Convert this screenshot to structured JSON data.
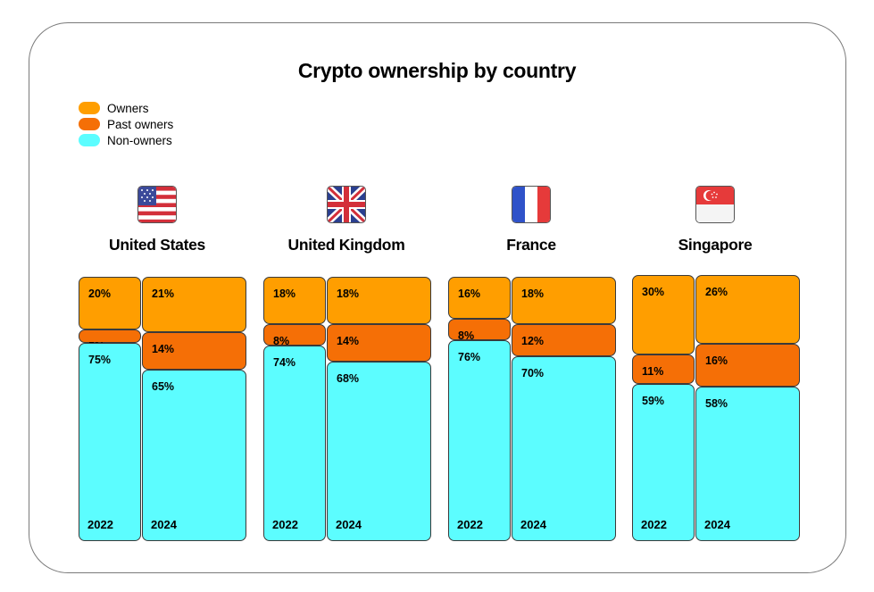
{
  "chart_data": {
    "type": "table",
    "title": "Crypto ownership by country",
    "legend": [
      {
        "name": "Owners",
        "color": "#ff9e00"
      },
      {
        "name": "Past owners",
        "color": "#f56f06"
      },
      {
        "name": "Non-owners",
        "color": "#5cfdff"
      }
    ],
    "categories": [
      "Owners",
      "Past owners",
      "Non-owners"
    ],
    "countries": [
      {
        "name": "United States",
        "flag": "us-flag-icon",
        "years": [
          {
            "year": "2022",
            "values": [
              20,
              5,
              75
            ],
            "labels": [
              "20%",
              "5%",
              "75%"
            ]
          },
          {
            "year": "2024",
            "values": [
              21,
              14,
              65
            ],
            "labels": [
              "21%",
              "14%",
              "65%"
            ]
          }
        ]
      },
      {
        "name": "United Kingdom",
        "flag": "uk-flag-icon",
        "years": [
          {
            "year": "2022",
            "values": [
              18,
              8,
              74
            ],
            "labels": [
              "18%",
              "8%",
              "74%"
            ]
          },
          {
            "year": "2024",
            "values": [
              18,
              14,
              68
            ],
            "labels": [
              "18%",
              "14%",
              "68%"
            ]
          }
        ]
      },
      {
        "name": "France",
        "flag": "france-flag-icon",
        "years": [
          {
            "year": "2022",
            "values": [
              16,
              8,
              76
            ],
            "labels": [
              "16%",
              "8%",
              "76%"
            ]
          },
          {
            "year": "2024",
            "values": [
              18,
              12,
              70
            ],
            "labels": [
              "18%",
              "12%",
              "70%"
            ]
          }
        ]
      },
      {
        "name": "Singapore",
        "flag": "singapore-flag-icon",
        "years": [
          {
            "year": "2022",
            "values": [
              30,
              11,
              59
            ],
            "labels": [
              "30%",
              "11%",
              "59%"
            ]
          },
          {
            "year": "2024",
            "values": [
              26,
              16,
              58
            ],
            "labels": [
              "26%",
              "16%",
              "58%"
            ]
          }
        ]
      }
    ]
  }
}
